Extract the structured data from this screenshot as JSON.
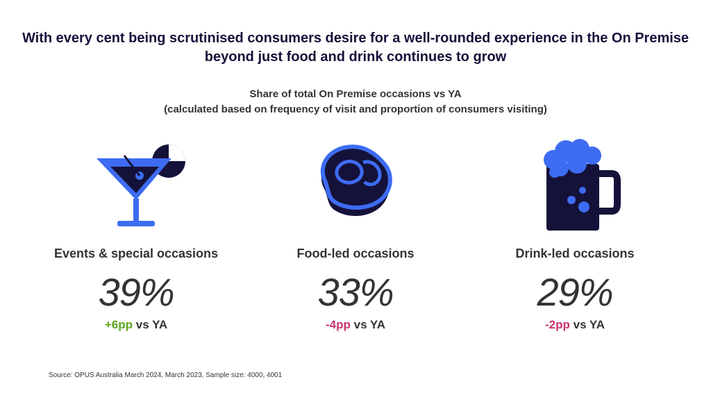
{
  "title": "With every cent being scrutinised consumers desire for a well-rounded experience in the On Premise beyond just food and drink continues to grow",
  "colors": {
    "navy": "#15123a",
    "blue": "#3d6cf2",
    "positive": "#5aa61e",
    "negative": "#c8336e"
  },
  "chart_data": {
    "type": "table",
    "title": "Share of total On Premise occasions vs YA",
    "subtitle": "(calculated based on frequency of visit and proportion of consumers visiting)",
    "categories": [
      {
        "label": "Events & special occasions",
        "icon": "cocktail-icon",
        "value": "39%",
        "change": "+6pp",
        "change_suffix": "vs YA",
        "direction": "up"
      },
      {
        "label": "Food-led occasions",
        "icon": "steak-icon",
        "value": "33%",
        "change": "-4pp",
        "change_suffix": "vs YA",
        "direction": "down"
      },
      {
        "label": "Drink-led occasions",
        "icon": "beer-mug-icon",
        "value": "29%",
        "change": "-2pp",
        "change_suffix": "vs YA",
        "direction": "down"
      }
    ]
  },
  "source": "Source: OPUS Australia March 2024, March 2023, Sample size: 4000, 4001"
}
